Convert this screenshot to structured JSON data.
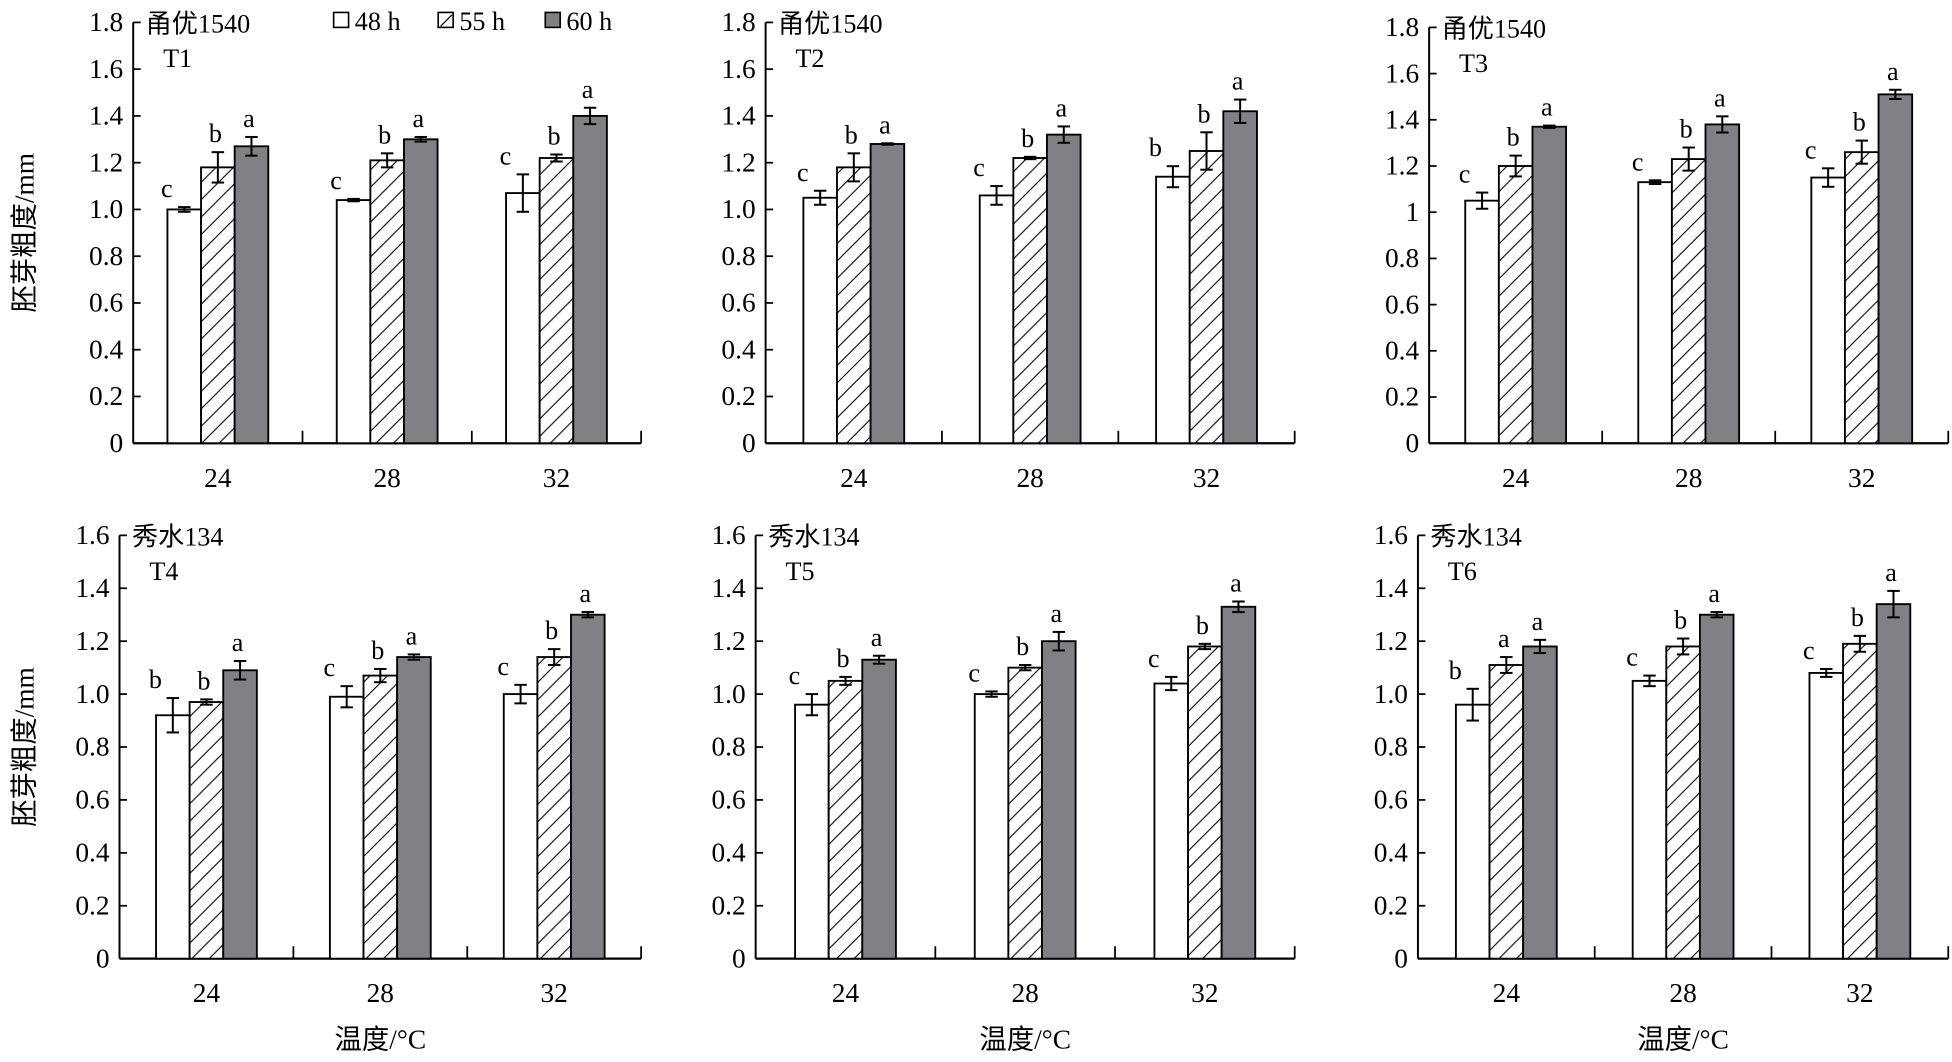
{
  "figure": {
    "y_axis_label": "胚芽粗度/mm",
    "x_axis_label": "温度/°C"
  },
  "legend": {
    "items": [
      {
        "label": "48 h",
        "style": "open"
      },
      {
        "label": "55 h",
        "style": "hatched"
      },
      {
        "label": "60 h",
        "style": "solid"
      }
    ],
    "placement": "top (panel T1)"
  },
  "colors": {
    "bar_48h_fill": "#ffffff",
    "bar_55h_fill": "#ffffff",
    "bar_60h_fill": "#808184",
    "stroke": "#000000"
  },
  "chart_data": [
    {
      "type": "bar",
      "panel": "T1",
      "title": "甬优1540",
      "subtitle": "T1",
      "categories": [
        "24",
        "28",
        "32"
      ],
      "xlabel": "",
      "ylabel": "胚芽粗度/mm",
      "ylim": [
        0,
        1.8
      ],
      "yticks": [
        "0",
        "0.2",
        "0.4",
        "0.6",
        "0.8",
        "1.0",
        "1.2",
        "1.4",
        "1.6",
        "1.8"
      ],
      "series": [
        {
          "name": "48 h",
          "values": [
            1.0,
            1.04,
            1.07
          ],
          "errors": [
            0.01,
            0.005,
            0.08
          ],
          "letters": [
            "c",
            "c",
            "c"
          ]
        },
        {
          "name": "55 h",
          "values": [
            1.18,
            1.21,
            1.22
          ],
          "errors": [
            0.065,
            0.03,
            0.015
          ],
          "letters": [
            "b",
            "b",
            "b"
          ]
        },
        {
          "name": "60 h",
          "values": [
            1.27,
            1.3,
            1.4
          ],
          "errors": [
            0.04,
            0.01,
            0.035
          ],
          "letters": [
            "a",
            "a",
            "a"
          ]
        }
      ],
      "grid": false
    },
    {
      "type": "bar",
      "panel": "T2",
      "title": "甬优1540",
      "subtitle": "T2",
      "categories": [
        "24",
        "28",
        "32"
      ],
      "xlabel": "",
      "ylabel": "",
      "ylim": [
        0,
        1.8
      ],
      "yticks": [
        "0",
        "0.2",
        "0.4",
        "0.6",
        "0.8",
        "1.0",
        "1.2",
        "1.4",
        "1.6",
        "1.8"
      ],
      "series": [
        {
          "name": "48 h",
          "values": [
            1.05,
            1.06,
            1.14
          ],
          "errors": [
            0.03,
            0.04,
            0.045
          ],
          "letters": [
            "c",
            "c",
            "b"
          ]
        },
        {
          "name": "55 h",
          "values": [
            1.18,
            1.22,
            1.25
          ],
          "errors": [
            0.06,
            0.005,
            0.08
          ],
          "letters": [
            "b",
            "b",
            "b"
          ]
        },
        {
          "name": "60 h",
          "values": [
            1.28,
            1.32,
            1.42
          ],
          "errors": [
            0.003,
            0.035,
            0.05
          ],
          "letters": [
            "a",
            "a",
            "a"
          ]
        }
      ],
      "grid": false
    },
    {
      "type": "bar",
      "panel": "T3",
      "title": "甬优1540",
      "subtitle": "T3",
      "categories": [
        "24",
        "28",
        "32"
      ],
      "xlabel": "",
      "ylabel": "",
      "ylim": [
        0,
        1.8
      ],
      "yticks": [
        "0",
        "0.2",
        "0.4",
        "0.6",
        "0.8",
        "1",
        "1.2",
        "1.4",
        "1.6",
        "1.8"
      ],
      "series": [
        {
          "name": "48 h",
          "values": [
            1.05,
            1.13,
            1.15
          ],
          "errors": [
            0.035,
            0.008,
            0.04
          ],
          "letters": [
            "c",
            "c",
            "c"
          ]
        },
        {
          "name": "55 h",
          "values": [
            1.2,
            1.23,
            1.26
          ],
          "errors": [
            0.045,
            0.05,
            0.05
          ],
          "letters": [
            "b",
            "b",
            "b"
          ]
        },
        {
          "name": "60 h",
          "values": [
            1.37,
            1.38,
            1.51
          ],
          "errors": [
            0.005,
            0.035,
            0.02
          ],
          "letters": [
            "a",
            "a",
            "a"
          ]
        }
      ],
      "grid": false
    },
    {
      "type": "bar",
      "panel": "T4",
      "title": "秀水134",
      "subtitle": "T4",
      "categories": [
        "24",
        "28",
        "32"
      ],
      "xlabel": "温度/°C",
      "ylabel": "胚芽粗度/mm",
      "ylim": [
        0,
        1.6
      ],
      "yticks": [
        "0",
        "0.2",
        "0.4",
        "0.6",
        "0.8",
        "1.0",
        "1.2",
        "1.4",
        "1.6"
      ],
      "series": [
        {
          "name": "48 h",
          "values": [
            0.92,
            0.99,
            1.0
          ],
          "errors": [
            0.065,
            0.04,
            0.035
          ],
          "letters": [
            "b",
            "c",
            "c"
          ]
        },
        {
          "name": "55 h",
          "values": [
            0.97,
            1.07,
            1.14
          ],
          "errors": [
            0.01,
            0.025,
            0.03
          ],
          "letters": [
            "b",
            "b",
            "b"
          ]
        },
        {
          "name": "60 h",
          "values": [
            1.09,
            1.14,
            1.3
          ],
          "errors": [
            0.035,
            0.01,
            0.01
          ],
          "letters": [
            "a",
            "a",
            "a"
          ]
        }
      ],
      "grid": false
    },
    {
      "type": "bar",
      "panel": "T5",
      "title": "秀水134",
      "subtitle": "T5",
      "categories": [
        "24",
        "28",
        "32"
      ],
      "xlabel": "温度/°C",
      "ylabel": "",
      "ylim": [
        0,
        1.6
      ],
      "yticks": [
        "0",
        "0.2",
        "0.4",
        "0.6",
        "0.8",
        "1.0",
        "1.2",
        "1.4",
        "1.6"
      ],
      "series": [
        {
          "name": "48 h",
          "values": [
            0.96,
            1.0,
            1.04
          ],
          "errors": [
            0.04,
            0.01,
            0.025
          ],
          "letters": [
            "c",
            "c",
            "c"
          ]
        },
        {
          "name": "55 h",
          "values": [
            1.05,
            1.1,
            1.18
          ],
          "errors": [
            0.015,
            0.01,
            0.01
          ],
          "letters": [
            "b",
            "b",
            "b"
          ]
        },
        {
          "name": "60 h",
          "values": [
            1.13,
            1.2,
            1.33
          ],
          "errors": [
            0.015,
            0.035,
            0.02
          ],
          "letters": [
            "a",
            "a",
            "a"
          ]
        }
      ],
      "grid": false
    },
    {
      "type": "bar",
      "panel": "T6",
      "title": "秀水134",
      "subtitle": "T6",
      "categories": [
        "24",
        "28",
        "32"
      ],
      "xlabel": "温度/°C",
      "ylabel": "",
      "ylim": [
        0,
        1.6
      ],
      "yticks": [
        "0",
        "0.2",
        "0.4",
        "0.6",
        "0.8",
        "1.0",
        "1.2",
        "1.4",
        "1.6"
      ],
      "series": [
        {
          "name": "48 h",
          "values": [
            0.96,
            1.05,
            1.08
          ],
          "errors": [
            0.06,
            0.02,
            0.015
          ],
          "letters": [
            "b",
            "c",
            "c"
          ]
        },
        {
          "name": "55 h",
          "values": [
            1.11,
            1.18,
            1.19
          ],
          "errors": [
            0.03,
            0.03,
            0.03
          ],
          "letters": [
            "a",
            "b",
            "b"
          ]
        },
        {
          "name": "60 h",
          "values": [
            1.18,
            1.3,
            1.34
          ],
          "errors": [
            0.025,
            0.01,
            0.05
          ],
          "letters": [
            "a",
            "a",
            "a"
          ]
        }
      ],
      "grid": false
    }
  ]
}
